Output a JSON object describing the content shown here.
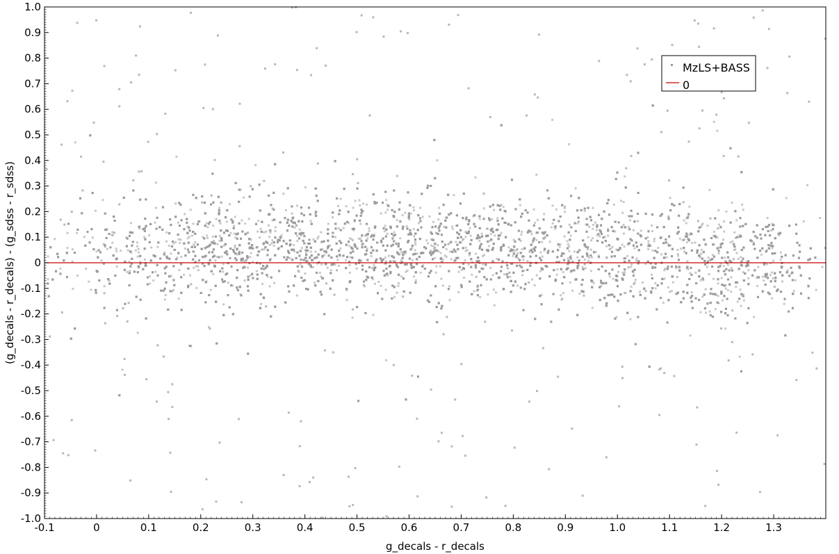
{
  "chart_data": {
    "type": "scatter",
    "xlabel": "g_decals - r_decals",
    "ylabel": "(g_decals - r_decals) - (g_sdss - r_sdss)",
    "xlim": [
      -0.1,
      1.4
    ],
    "ylim": [
      -1.0,
      1.0
    ],
    "x_ticks": [
      "-0.1",
      "0",
      "0.1",
      "0.2",
      "0.3",
      "0.4",
      "0.5",
      "0.6",
      "0.7",
      "0.8",
      "0.9",
      "1.0",
      "1.1",
      "1.2",
      "1.3"
    ],
    "y_ticks": [
      "1.0",
      "0.9",
      "0.8",
      "0.7",
      "0.6",
      "0.5",
      "0.4",
      "0.3",
      "0.2",
      "0.1",
      "0",
      "-0.1",
      "-0.2",
      "-0.3",
      "-0.4",
      "-0.5",
      "-0.6",
      "-0.7",
      "-0.8",
      "-0.9",
      "-1.0"
    ],
    "grid": false,
    "legend_position": "top-right",
    "series": [
      {
        "name": "MzLS+BASS",
        "kind": "points",
        "color": "#9a9a9a",
        "trend": {
          "x": [
            0.0,
            0.2,
            0.4,
            0.6,
            0.8,
            0.9,
            1.0,
            1.2,
            1.3
          ],
          "y": [
            0.03,
            0.06,
            0.07,
            0.07,
            0.05,
            0.04,
            0.03,
            0.0,
            0.0
          ]
        },
        "spread": 0.1
      },
      {
        "name": "0",
        "kind": "line",
        "color": "#cc0000",
        "y": 0
      }
    ]
  }
}
